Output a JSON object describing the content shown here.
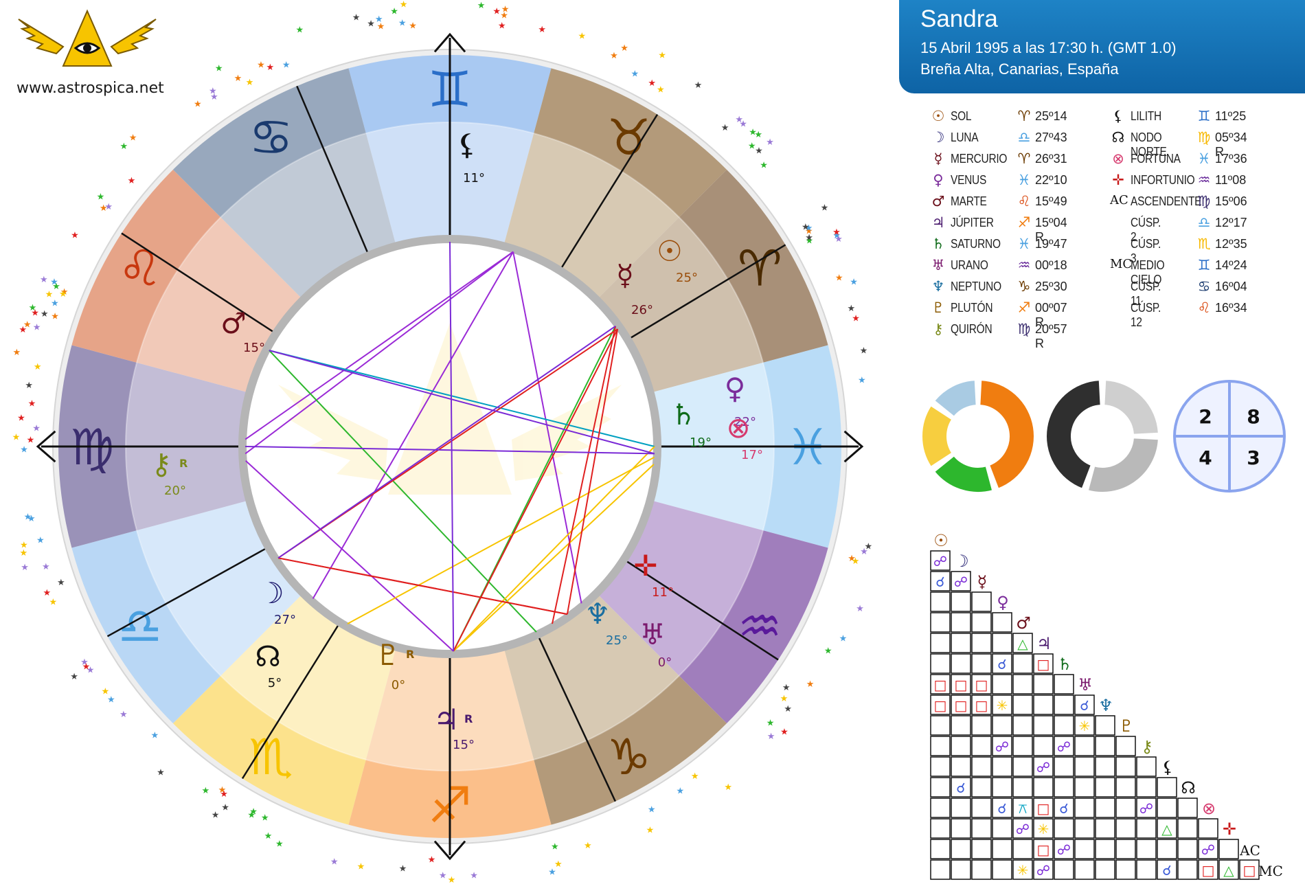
{
  "site": {
    "url": "www.astrospica.net"
  },
  "subject": {
    "name": "Sandra",
    "datetime": "15 Abril 1995 a las  17:30 h. (GMT 1.0)",
    "place": "Breña Alta, Canarias, España"
  },
  "colors": {
    "header_bg": "#1574b8",
    "fire": "#f07d10",
    "earth": "#2db72d",
    "air": "#f7ce3f",
    "water": "#a9cbe3",
    "cardinal": "#2f2f2f",
    "fixed": "#cfcfcf",
    "mutable": "#b9b9b9",
    "quadrant": "#8aa4ee"
  },
  "planets_left": [
    {
      "glyph": "☉",
      "name": "SOL",
      "sign_glyph": "♈",
      "position": "25º14",
      "color": "#9a4d0a",
      "sign_color": "#6b3a00"
    },
    {
      "glyph": "☽",
      "name": "LUNA",
      "sign_glyph": "♎",
      "position": "27º43",
      "color": "#1e1a6e",
      "sign_color": "#4aa0e0"
    },
    {
      "glyph": "☿",
      "name": "MERCURIO",
      "sign_glyph": "♈",
      "position": "26º31",
      "color": "#6b0f1a",
      "sign_color": "#6b3a00"
    },
    {
      "glyph": "♀",
      "name": "VENUS",
      "sign_glyph": "♓",
      "position": "22º10",
      "color": "#7b2d9b",
      "sign_color": "#4aa0e0"
    },
    {
      "glyph": "♂",
      "name": "MARTE",
      "sign_glyph": "♌",
      "position": "15º49",
      "color": "#6b0f1a",
      "sign_color": "#d9480f"
    },
    {
      "glyph": "♃",
      "name": "JÚPITER",
      "sign_glyph": "♐",
      "position": "15º04 R",
      "color": "#4a1a6e",
      "sign_color": "#f07d10"
    },
    {
      "glyph": "♄",
      "name": "SATURNO",
      "sign_glyph": "♓",
      "position": "19º47",
      "color": "#0f6b1a",
      "sign_color": "#4aa0e0"
    },
    {
      "glyph": "♅",
      "name": "URANO",
      "sign_glyph": "♒",
      "position": "00º18",
      "color": "#7b1a6e",
      "sign_color": "#6a2d9b"
    },
    {
      "glyph": "♆",
      "name": "NEPTUNO",
      "sign_glyph": "♑",
      "position": "25º30",
      "color": "#1a6ea0",
      "sign_color": "#6b3a00"
    },
    {
      "glyph": "♇",
      "name": "PLUTÓN",
      "sign_glyph": "♐",
      "position": "00º07 R",
      "color": "#8b5a00",
      "sign_color": "#f07d10"
    },
    {
      "glyph": "⚷",
      "name": "QUIRÓN",
      "sign_glyph": "♍",
      "position": "20º57 R",
      "color": "#7a8a1a",
      "sign_color": "#3a2d6e"
    }
  ],
  "planets_right": [
    {
      "glyph": "⚸",
      "name": "LILITH",
      "sign_glyph": "♊",
      "position": "11º25",
      "color": "#111111",
      "sign_color": "#2a6ec8"
    },
    {
      "glyph": "☊",
      "name": "NODO NORTE",
      "sign_glyph": "♍",
      "position": "05º34 R",
      "color": "#111111",
      "sign_color": "#f7b800"
    },
    {
      "glyph": "⊗",
      "name": "FORTUNA",
      "sign_glyph": "♓",
      "position": "17º36",
      "color": "#d63a6e",
      "sign_color": "#4aa0e0"
    },
    {
      "glyph": "✛",
      "name": "INFORTUNIO",
      "sign_glyph": "♒",
      "position": "11º08",
      "color": "#c81a1a",
      "sign_color": "#6a2d9b"
    },
    {
      "glyph": "AC",
      "name": "ASCENDENTE",
      "sign_glyph": "♍",
      "position": "15º06",
      "color": "#111111",
      "sign_color": "#3a2d6e"
    },
    {
      "glyph": "",
      "name": "CÚSP. 2",
      "sign_glyph": "♎",
      "position": "12º17",
      "color": "#111111",
      "sign_color": "#4aa0e0"
    },
    {
      "glyph": "",
      "name": "CÚSP. 3",
      "sign_glyph": "♏",
      "position": "12º35",
      "color": "#111111",
      "sign_color": "#f7b800"
    },
    {
      "glyph": "MC",
      "name": "MEDIO CIELO",
      "sign_glyph": "♊",
      "position": "14º24",
      "color": "#111111",
      "sign_color": "#2a6ec8"
    },
    {
      "glyph": "",
      "name": "CÚSP. 11",
      "sign_glyph": "♋",
      "position": "16º04",
      "color": "#111111",
      "sign_color": "#1a3a6e"
    },
    {
      "glyph": "",
      "name": "CÚSP. 12",
      "sign_glyph": "♌",
      "position": "16º34",
      "color": "#111111",
      "sign_color": "#d9480f"
    }
  ],
  "element_balance": [
    {
      "name": "fire",
      "value": 45
    },
    {
      "name": "earth",
      "value": 20
    },
    {
      "name": "air",
      "value": 20
    },
    {
      "name": "water",
      "value": 15
    }
  ],
  "mode_balance": [
    {
      "name": "fixed",
      "value": 25
    },
    {
      "name": "mutable",
      "value": 30
    },
    {
      "name": "cardinal",
      "value": 45
    }
  ],
  "quadrants": {
    "q_top_left": "2",
    "q_top_right": "8",
    "q_bottom_left": "4",
    "q_bottom_right": "3"
  },
  "wheel": {
    "signs": [
      {
        "glyph": "♊",
        "name": "gemini",
        "color": "#2a6ec8",
        "outer": "#a9c9f2",
        "inner": "#cfe0f7"
      },
      {
        "glyph": "♉",
        "name": "taurus",
        "color": "#6b3a00",
        "outer": "#b39a7a",
        "inner": "#d7c9b3"
      },
      {
        "glyph": "♈",
        "name": "aries",
        "color": "#4a2a00",
        "outer": "#a89078",
        "inner": "#cfc0ad"
      },
      {
        "glyph": "♓",
        "name": "pisces",
        "color": "#4aa0e0",
        "outer": "#b9dcf7",
        "inner": "#d7ecfb"
      },
      {
        "glyph": "♒",
        "name": "aquarius",
        "color": "#5a1a9b",
        "outer": "#a07ebc",
        "inner": "#c6b0d9"
      },
      {
        "glyph": "♑",
        "name": "capricorn",
        "color": "#6b3a00",
        "outer": "#b39a7a",
        "inner": "#d7c9b3"
      },
      {
        "glyph": "♐",
        "name": "sagittarius",
        "color": "#f07d10",
        "outer": "#fbbf8a",
        "inner": "#fcdcbd"
      },
      {
        "glyph": "♏",
        "name": "scorpio",
        "color": "#f7c400",
        "outer": "#fce28c",
        "inner": "#fdf0c2"
      },
      {
        "glyph": "♎",
        "name": "libra",
        "color": "#4aa0e0",
        "outer": "#b9d7f5",
        "inner": "#d7e8fa"
      },
      {
        "glyph": "♍",
        "name": "virgo",
        "color": "#3a2d6e",
        "outer": "#9a92b8",
        "inner": "#c3bdd6"
      },
      {
        "glyph": "♌",
        "name": "leo",
        "color": "#c8380f",
        "outer": "#e6a488",
        "inner": "#f1c9b8"
      },
      {
        "glyph": "♋",
        "name": "cancer",
        "color": "#1a3a6e",
        "outer": "#98a8bd",
        "inner": "#c1cad6"
      }
    ],
    "bodies": [
      {
        "glyph": "⚸",
        "deg": "11°",
        "color": "#111111"
      },
      {
        "glyph": "☉",
        "deg": "25°",
        "color": "#9a4d0a"
      },
      {
        "glyph": "☿",
        "deg": "26°",
        "color": "#6b0f1a"
      },
      {
        "glyph": "♀",
        "deg": "22°",
        "color": "#7b2d9b"
      },
      {
        "glyph": "♄",
        "deg": "19°",
        "color": "#0f6b1a"
      },
      {
        "glyph": "⊗",
        "deg": "17°",
        "color": "#d63a6e"
      },
      {
        "glyph": "✛",
        "deg": "11°",
        "color": "#c81a1a"
      },
      {
        "glyph": "♆",
        "deg": "25°",
        "color": "#1a6ea0"
      },
      {
        "glyph": "♅",
        "deg": "0°",
        "color": "#7b1a6e"
      },
      {
        "glyph": "♃",
        "deg": "15°",
        "retro": "R",
        "color": "#4a1a6e"
      },
      {
        "glyph": "♇",
        "deg": "0°",
        "retro": "R",
        "color": "#8b5a00"
      },
      {
        "glyph": "☊",
        "deg": "5°",
        "color": "#111111"
      },
      {
        "glyph": "☽",
        "deg": "27°",
        "color": "#1e1a6e"
      },
      {
        "glyph": "⚷",
        "deg": "20°",
        "retro": "R",
        "color": "#7a8a1a"
      },
      {
        "glyph": "♂",
        "deg": "15°",
        "color": "#6b0f1a"
      }
    ]
  },
  "aspect_grid": {
    "row_labels": [
      {
        "glyph": "☉",
        "color": "#9a4d0a"
      },
      {
        "glyph": "☽",
        "color": "#1e1a6e"
      },
      {
        "glyph": "☿",
        "color": "#6b0f1a"
      },
      {
        "glyph": "♀",
        "color": "#7b2d9b"
      },
      {
        "glyph": "♂",
        "color": "#6b0f1a"
      },
      {
        "glyph": "♃",
        "color": "#4a1a6e"
      },
      {
        "glyph": "♄",
        "color": "#0f6b1a"
      },
      {
        "glyph": "♅",
        "color": "#7b1a6e"
      },
      {
        "glyph": "♆",
        "color": "#1a6ea0"
      },
      {
        "glyph": "♇",
        "color": "#8b5a00"
      },
      {
        "glyph": "⚷",
        "color": "#7a8a1a"
      },
      {
        "glyph": "⚸",
        "color": "#111111"
      },
      {
        "glyph": "☊",
        "color": "#111111"
      },
      {
        "glyph": "⊗",
        "color": "#d63a6e"
      },
      {
        "glyph": "✛",
        "color": "#c81a1a"
      },
      {
        "glyph": "AC",
        "color": "#111111"
      },
      {
        "glyph": "MC",
        "color": "#111111"
      }
    ],
    "aspects": [
      {
        "row": 1,
        "col": 0,
        "type": "opposition"
      },
      {
        "row": 2,
        "col": 0,
        "type": "conjunction"
      },
      {
        "row": 2,
        "col": 1,
        "type": "opposition"
      },
      {
        "row": 5,
        "col": 4,
        "type": "trine"
      },
      {
        "row": 6,
        "col": 3,
        "type": "conjunction"
      },
      {
        "row": 6,
        "col": 5,
        "type": "square"
      },
      {
        "row": 7,
        "col": 0,
        "type": "square"
      },
      {
        "row": 7,
        "col": 1,
        "type": "square"
      },
      {
        "row": 7,
        "col": 2,
        "type": "square"
      },
      {
        "row": 8,
        "col": 0,
        "type": "square"
      },
      {
        "row": 8,
        "col": 1,
        "type": "square"
      },
      {
        "row": 8,
        "col": 2,
        "type": "square"
      },
      {
        "row": 8,
        "col": 3,
        "type": "sextile"
      },
      {
        "row": 8,
        "col": 7,
        "type": "conjunction"
      },
      {
        "row": 9,
        "col": 7,
        "type": "sextile"
      },
      {
        "row": 10,
        "col": 3,
        "type": "opposition"
      },
      {
        "row": 10,
        "col": 6,
        "type": "opposition"
      },
      {
        "row": 11,
        "col": 5,
        "type": "opposition"
      },
      {
        "row": 12,
        "col": 1,
        "type": "conjunction"
      },
      {
        "row": 13,
        "col": 3,
        "type": "conjunction"
      },
      {
        "row": 13,
        "col": 4,
        "type": "quincunx"
      },
      {
        "row": 13,
        "col": 5,
        "type": "square"
      },
      {
        "row": 13,
        "col": 6,
        "type": "conjunction"
      },
      {
        "row": 13,
        "col": 10,
        "type": "opposition"
      },
      {
        "row": 14,
        "col": 4,
        "type": "opposition"
      },
      {
        "row": 14,
        "col": 5,
        "type": "sextile"
      },
      {
        "row": 14,
        "col": 11,
        "type": "trine"
      },
      {
        "row": 15,
        "col": 5,
        "type": "square"
      },
      {
        "row": 15,
        "col": 6,
        "type": "opposition"
      },
      {
        "row": 15,
        "col": 13,
        "type": "opposition"
      },
      {
        "row": 16,
        "col": 4,
        "type": "sextile"
      },
      {
        "row": 16,
        "col": 5,
        "type": "opposition"
      },
      {
        "row": 16,
        "col": 11,
        "type": "conjunction"
      },
      {
        "row": 16,
        "col": 13,
        "type": "square"
      },
      {
        "row": 16,
        "col": 14,
        "type": "trine"
      },
      {
        "row": 16,
        "col": 15,
        "type": "square"
      }
    ]
  }
}
